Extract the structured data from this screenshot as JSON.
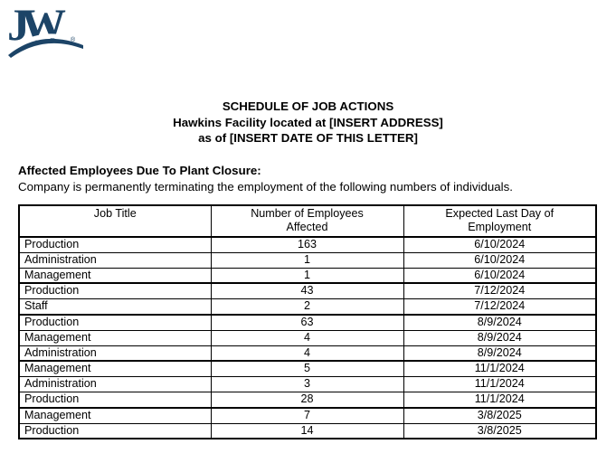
{
  "logo": {
    "letter_j": "J",
    "letter_w": "W",
    "registered": "®",
    "color": "#1c4467"
  },
  "heading": {
    "line1": "SCHEDULE OF JOB ACTIONS",
    "line2": "Hawkins Facility located at [INSERT ADDRESS]",
    "line3": "as of [INSERT DATE OF THIS LETTER]"
  },
  "intro": {
    "heading": "Affected Employees Due To Plant Closure:",
    "body": "Company is permanently terminating the employment of the following numbers of individuals."
  },
  "table": {
    "headers": [
      "Job Title",
      "Number of Employees Affected",
      "Expected Last Day of Employment"
    ],
    "rows": [
      [
        "Production",
        "163",
        "6/10/2024"
      ],
      [
        "Administration",
        "1",
        "6/10/2024"
      ],
      [
        "Management",
        "1",
        "6/10/2024"
      ],
      [
        "Production",
        "43",
        "7/12/2024"
      ],
      [
        "Staff",
        "2",
        "7/12/2024"
      ],
      [
        "Production",
        "63",
        "8/9/2024"
      ],
      [
        "Management",
        "4",
        "8/9/2024"
      ],
      [
        "Administration",
        "4",
        "8/9/2024"
      ],
      [
        "Management",
        "5",
        "11/1/2024"
      ],
      [
        "Administration",
        "3",
        "11/1/2024"
      ],
      [
        "Production",
        "28",
        "11/1/2024"
      ],
      [
        "Management",
        "7",
        "3/8/2025"
      ],
      [
        "Production",
        "14",
        "3/8/2025"
      ]
    ]
  }
}
